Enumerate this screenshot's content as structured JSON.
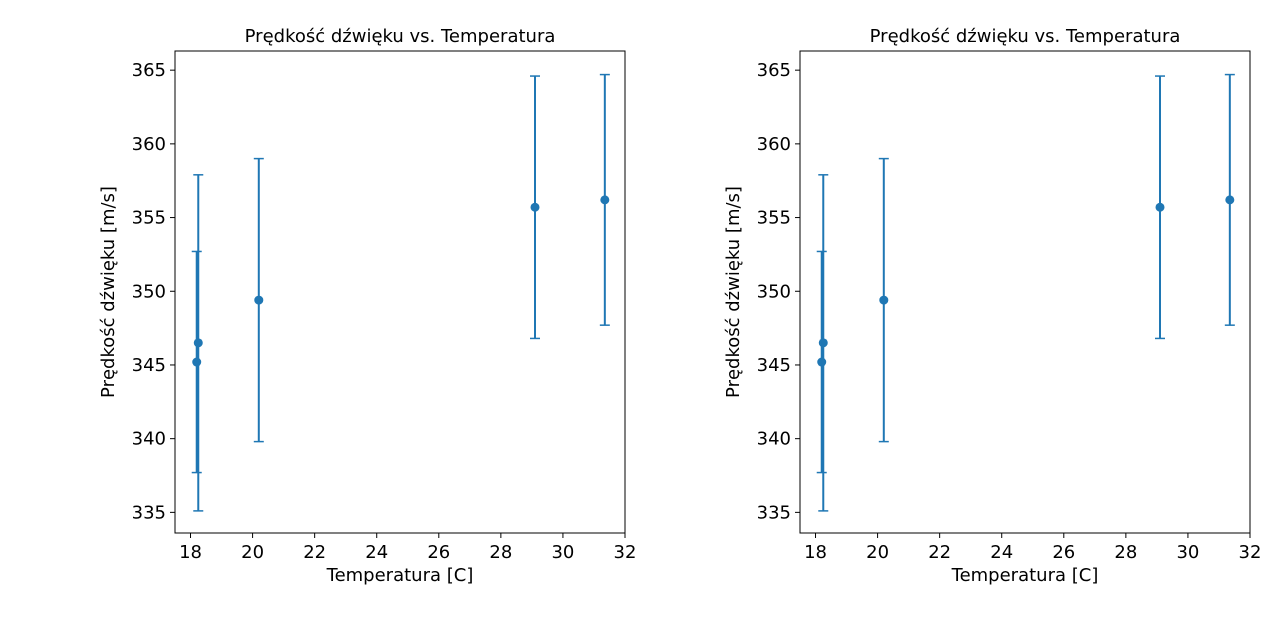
{
  "chart_data": [
    {
      "type": "scatter",
      "title": "Prędkość dźwięku vs. Temperatura",
      "xlabel": "Temperatura [C]",
      "ylabel": "Prędkość dźwięku [m/s]",
      "xlim": [
        17.5,
        32
      ],
      "ylim": [
        333.6,
        366.3
      ],
      "xticks": [
        "18",
        "20",
        "22",
        "24",
        "26",
        "28",
        "30",
        "32"
      ],
      "yticks": [
        "335",
        "340",
        "345",
        "350",
        "355",
        "360",
        "365"
      ],
      "grid": false,
      "series": [
        {
          "color": "#1f77b4",
          "points": [
            {
              "x": 18.2,
              "y": 345.2,
              "err": 7.5
            },
            {
              "x": 18.25,
              "y": 346.5,
              "err": 11.4
            },
            {
              "x": 20.2,
              "y": 349.4,
              "err": 9.6
            },
            {
              "x": 29.1,
              "y": 355.7,
              "err": 8.9
            },
            {
              "x": 31.35,
              "y": 356.2,
              "err": 8.5
            }
          ]
        }
      ]
    },
    {
      "type": "scatter",
      "title": "Prędkość dźwięku vs. Temperatura",
      "xlabel": "Temperatura [C]",
      "ylabel": "Prędkość dźwięku [m/s]",
      "xlim": [
        17.5,
        32
      ],
      "ylim": [
        333.6,
        366.3
      ],
      "xticks": [
        "18",
        "20",
        "22",
        "24",
        "26",
        "28",
        "30",
        "32"
      ],
      "yticks": [
        "335",
        "340",
        "345",
        "350",
        "355",
        "360",
        "365"
      ],
      "grid": false,
      "series": [
        {
          "color": "#1f77b4",
          "points": [
            {
              "x": 18.2,
              "y": 345.2,
              "err": 7.5
            },
            {
              "x": 18.25,
              "y": 346.5,
              "err": 11.4
            },
            {
              "x": 20.2,
              "y": 349.4,
              "err": 9.6
            },
            {
              "x": 29.1,
              "y": 355.7,
              "err": 8.9
            },
            {
              "x": 31.35,
              "y": 356.2,
              "err": 8.5
            }
          ]
        }
      ]
    }
  ]
}
